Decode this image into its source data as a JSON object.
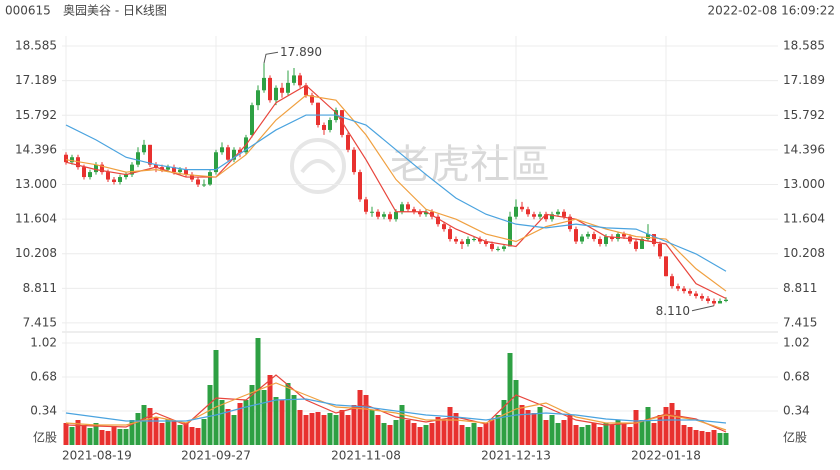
{
  "header": {
    "code": "000615",
    "name": "奥园美谷 - 日K线图",
    "datetime": "2022-02-08 16:09:22"
  },
  "watermark": "老虎社區",
  "chart_data": {
    "type": "candlestick",
    "categories": [
      "2021-08-19",
      null,
      null,
      null,
      null,
      null,
      null,
      null,
      null,
      null,
      null,
      null,
      null,
      null,
      null,
      null,
      null,
      null,
      null,
      null,
      null,
      null,
      null,
      null,
      null,
      "2021-09-27",
      null,
      null,
      null,
      null,
      null,
      null,
      null,
      null,
      null,
      null,
      null,
      null,
      null,
      null,
      null,
      null,
      null,
      null,
      null,
      null,
      null,
      null,
      null,
      null,
      "2021-11-08",
      null,
      null,
      null,
      null,
      null,
      null,
      null,
      null,
      null,
      null,
      null,
      null,
      null,
      null,
      null,
      null,
      null,
      null,
      null,
      null,
      null,
      null,
      null,
      null,
      "2021-12-13",
      null,
      null,
      null,
      null,
      null,
      null,
      null,
      null,
      null,
      null,
      null,
      null,
      null,
      null,
      null,
      null,
      null,
      null,
      null,
      null,
      null,
      null,
      null,
      null,
      "2022-01-18",
      null,
      null,
      null,
      null,
      null,
      null,
      null,
      null,
      null,
      null
    ],
    "ohlc": [
      [
        14.2,
        14.3,
        13.8,
        13.9
      ],
      [
        13.9,
        14.2,
        13.8,
        14.1
      ],
      [
        14.1,
        14.2,
        13.6,
        13.7
      ],
      [
        13.7,
        13.8,
        13.2,
        13.3
      ],
      [
        13.3,
        13.6,
        13.2,
        13.5
      ],
      [
        13.5,
        13.9,
        13.4,
        13.8
      ],
      [
        13.8,
        13.9,
        13.4,
        13.5
      ],
      [
        13.5,
        13.6,
        13.1,
        13.2
      ],
      [
        13.2,
        13.3,
        13.0,
        13.1
      ],
      [
        13.1,
        13.4,
        13.0,
        13.3
      ],
      [
        13.3,
        13.5,
        13.2,
        13.4
      ],
      [
        13.4,
        13.9,
        13.3,
        13.8
      ],
      [
        13.8,
        14.5,
        13.7,
        14.3
      ],
      [
        14.3,
        14.8,
        14.2,
        14.6
      ],
      [
        14.6,
        14.6,
        13.7,
        13.8
      ],
      [
        13.8,
        13.9,
        13.5,
        13.7
      ],
      [
        13.7,
        13.8,
        13.5,
        13.6
      ],
      [
        13.6,
        13.8,
        13.5,
        13.7
      ],
      [
        13.7,
        13.8,
        13.4,
        13.5
      ],
      [
        13.5,
        13.7,
        13.4,
        13.6
      ],
      [
        13.6,
        13.7,
        13.3,
        13.4
      ],
      [
        13.4,
        13.5,
        13.1,
        13.2
      ],
      [
        13.2,
        13.3,
        12.9,
        13.0
      ],
      [
        13.0,
        13.2,
        12.9,
        13.0
      ],
      [
        13.0,
        13.6,
        12.95,
        13.5
      ],
      [
        13.5,
        14.4,
        13.4,
        14.3
      ],
      [
        14.3,
        14.7,
        14.2,
        14.5
      ],
      [
        14.5,
        14.6,
        13.9,
        14.0
      ],
      [
        14.0,
        14.5,
        13.9,
        14.4
      ],
      [
        14.4,
        14.5,
        14.1,
        14.3
      ],
      [
        14.3,
        15.0,
        14.2,
        14.9
      ],
      [
        15.0,
        16.3,
        14.9,
        16.2
      ],
      [
        16.2,
        17.0,
        16.0,
        16.8
      ],
      [
        16.8,
        17.89,
        16.7,
        17.3
      ],
      [
        17.3,
        17.4,
        16.3,
        16.4
      ],
      [
        16.4,
        17.0,
        16.2,
        16.9
      ],
      [
        16.9,
        17.1,
        16.5,
        16.7
      ],
      [
        16.7,
        17.6,
        16.6,
        17.1
      ],
      [
        17.1,
        17.7,
        17.0,
        17.4
      ],
      [
        17.4,
        17.5,
        16.9,
        17.0
      ],
      [
        17.0,
        17.1,
        16.5,
        16.6
      ],
      [
        16.6,
        16.7,
        16.2,
        16.3
      ],
      [
        16.3,
        16.3,
        15.3,
        15.4
      ],
      [
        15.4,
        15.5,
        15.0,
        15.2
      ],
      [
        15.2,
        15.7,
        15.1,
        15.6
      ],
      [
        15.6,
        16.1,
        15.5,
        16.0
      ],
      [
        16.0,
        16.0,
        14.9,
        15.0
      ],
      [
        15.0,
        15.1,
        14.3,
        14.4
      ],
      [
        14.4,
        14.5,
        13.4,
        13.5
      ],
      [
        13.5,
        13.6,
        12.3,
        12.4
      ],
      [
        12.4,
        12.5,
        11.8,
        11.9
      ],
      [
        11.9,
        12.1,
        11.7,
        11.9
      ],
      [
        11.9,
        12.0,
        11.6,
        11.7
      ],
      [
        11.7,
        11.9,
        11.6,
        11.8
      ],
      [
        11.8,
        11.9,
        11.5,
        11.6
      ],
      [
        11.6,
        12.0,
        11.5,
        11.9
      ],
      [
        11.9,
        12.3,
        11.8,
        12.2
      ],
      [
        12.2,
        12.3,
        11.9,
        12.0
      ],
      [
        12.0,
        12.1,
        11.8,
        11.9
      ],
      [
        11.9,
        12.0,
        11.7,
        11.8
      ],
      [
        11.8,
        12.0,
        11.7,
        11.9
      ],
      [
        11.9,
        12.0,
        11.6,
        11.7
      ],
      [
        11.7,
        11.8,
        11.3,
        11.4
      ],
      [
        11.4,
        11.5,
        11.1,
        11.2
      ],
      [
        11.2,
        11.3,
        10.7,
        10.8
      ],
      [
        10.8,
        10.9,
        10.6,
        10.7
      ],
      [
        10.7,
        10.8,
        10.4,
        10.6
      ],
      [
        10.6,
        10.9,
        10.5,
        10.8
      ],
      [
        10.8,
        10.9,
        10.7,
        10.8
      ],
      [
        10.8,
        10.9,
        10.6,
        10.7
      ],
      [
        10.7,
        10.8,
        10.5,
        10.6
      ],
      [
        10.6,
        10.7,
        10.3,
        10.4
      ],
      [
        10.4,
        10.5,
        10.3,
        10.4
      ],
      [
        10.4,
        10.6,
        10.3,
        10.5
      ],
      [
        10.5,
        11.9,
        10.5,
        11.7
      ],
      [
        11.7,
        12.4,
        11.6,
        12.1
      ],
      [
        12.1,
        12.3,
        11.9,
        12.0
      ],
      [
        12.0,
        12.1,
        11.7,
        11.8
      ],
      [
        11.8,
        11.9,
        11.6,
        11.7
      ],
      [
        11.7,
        11.9,
        11.6,
        11.8
      ],
      [
        11.8,
        11.9,
        11.5,
        11.6
      ],
      [
        11.6,
        11.9,
        11.5,
        11.8
      ],
      [
        11.8,
        12.0,
        11.7,
        11.9
      ],
      [
        11.9,
        12.0,
        11.6,
        11.7
      ],
      [
        11.7,
        11.8,
        11.1,
        11.2
      ],
      [
        11.2,
        11.3,
        10.6,
        10.7
      ],
      [
        10.7,
        11.0,
        10.6,
        10.9
      ],
      [
        10.9,
        11.1,
        10.8,
        11.0
      ],
      [
        11.0,
        11.1,
        10.7,
        10.8
      ],
      [
        10.8,
        10.9,
        10.5,
        10.6
      ],
      [
        10.6,
        11.0,
        10.5,
        10.9
      ],
      [
        10.9,
        11.0,
        10.7,
        10.8
      ],
      [
        10.8,
        11.1,
        10.7,
        11.0
      ],
      [
        11.0,
        11.1,
        10.8,
        10.9
      ],
      [
        10.9,
        11.0,
        10.6,
        10.7
      ],
      [
        10.7,
        10.8,
        10.3,
        10.4
      ],
      [
        10.4,
        10.9,
        10.4,
        10.8
      ],
      [
        10.8,
        11.4,
        10.7,
        11.0
      ],
      [
        11.0,
        11.0,
        10.5,
        10.6
      ],
      [
        10.6,
        10.7,
        10.0,
        10.1
      ],
      [
        10.1,
        10.1,
        9.3,
        9.3
      ],
      [
        9.3,
        9.4,
        8.8,
        8.9
      ],
      [
        8.9,
        9.0,
        8.7,
        8.8
      ],
      [
        8.8,
        8.9,
        8.6,
        8.7
      ],
      [
        8.7,
        8.8,
        8.5,
        8.6
      ],
      [
        8.6,
        8.7,
        8.4,
        8.5
      ],
      [
        8.5,
        8.6,
        8.3,
        8.4
      ],
      [
        8.4,
        8.5,
        8.2,
        8.3
      ],
      [
        8.3,
        8.4,
        8.11,
        8.2
      ],
      [
        8.2,
        8.4,
        8.2,
        8.3
      ],
      [
        8.3,
        8.45,
        8.25,
        8.35
      ]
    ],
    "volume": [
      0.22,
      0.18,
      0.25,
      0.2,
      0.17,
      0.22,
      0.15,
      0.14,
      0.19,
      0.16,
      0.16,
      0.25,
      0.32,
      0.4,
      0.37,
      0.28,
      0.22,
      0.26,
      0.24,
      0.2,
      0.22,
      0.18,
      0.17,
      0.26,
      0.6,
      0.95,
      0.45,
      0.36,
      0.3,
      0.42,
      0.45,
      0.6,
      1.07,
      0.55,
      0.7,
      0.48,
      0.45,
      0.62,
      0.5,
      0.35,
      0.3,
      0.32,
      0.33,
      0.3,
      0.32,
      0.3,
      0.35,
      0.3,
      0.4,
      0.55,
      0.5,
      0.35,
      0.3,
      0.22,
      0.2,
      0.25,
      0.4,
      0.25,
      0.22,
      0.18,
      0.2,
      0.22,
      0.28,
      0.25,
      0.38,
      0.32,
      0.2,
      0.18,
      0.22,
      0.18,
      0.22,
      0.25,
      0.3,
      0.45,
      0.92,
      0.65,
      0.4,
      0.35,
      0.32,
      0.38,
      0.25,
      0.3,
      0.22,
      0.25,
      0.3,
      0.2,
      0.18,
      0.2,
      0.22,
      0.18,
      0.22,
      0.2,
      0.25,
      0.22,
      0.18,
      0.35,
      0.25,
      0.38,
      0.22,
      0.3,
      0.38,
      0.42,
      0.35,
      0.2,
      0.18,
      0.15,
      0.14,
      0.13,
      0.15,
      0.12,
      0.12
    ],
    "up_color": "#2ea043",
    "down_color": "#e8312f",
    "ma_x": [
      0,
      5,
      10,
      15,
      20,
      25,
      30,
      35,
      40,
      45,
      50,
      55,
      60,
      65,
      70,
      75,
      80,
      85,
      90,
      95,
      100,
      105,
      110
    ],
    "ma": [
      {
        "color": "#e8453c",
        "values": [
          13.9,
          13.6,
          13.4,
          13.7,
          13.3,
          13.3,
          14.6,
          16.3,
          17.0,
          15.9,
          14.0,
          11.9,
          11.9,
          11.2,
          10.7,
          10.5,
          11.8,
          11.6,
          10.9,
          10.8,
          10.6,
          9.0,
          8.4
        ]
      },
      {
        "color": "#f0a040",
        "values": [
          14.0,
          13.8,
          13.5,
          13.6,
          13.4,
          13.3,
          14.2,
          15.6,
          16.6,
          16.4,
          15.0,
          13.2,
          12.0,
          11.6,
          11.0,
          10.7,
          11.3,
          11.6,
          11.2,
          10.9,
          10.8,
          9.6,
          8.7
        ]
      },
      {
        "color": "#4aa3df",
        "values": [
          15.4,
          14.8,
          14.1,
          13.8,
          13.6,
          13.6,
          14.4,
          15.2,
          15.8,
          15.8,
          15.4,
          14.4,
          13.4,
          12.45,
          11.8,
          11.4,
          11.25,
          11.4,
          11.25,
          11.2,
          10.7,
          10.2,
          9.5
        ]
      }
    ],
    "volume_ma": [
      {
        "color": "#e8453c",
        "values": [
          0.2,
          0.19,
          0.18,
          0.32,
          0.2,
          0.47,
          0.45,
          0.7,
          0.45,
          0.32,
          0.4,
          0.28,
          0.23,
          0.28,
          0.21,
          0.5,
          0.38,
          0.25,
          0.2,
          0.22,
          0.31,
          0.26,
          0.13
        ]
      },
      {
        "color": "#f0a040",
        "values": [
          0.22,
          0.2,
          0.2,
          0.28,
          0.22,
          0.38,
          0.5,
          0.62,
          0.5,
          0.38,
          0.36,
          0.32,
          0.25,
          0.25,
          0.22,
          0.36,
          0.42,
          0.28,
          0.22,
          0.22,
          0.3,
          0.25,
          0.15
        ]
      },
      {
        "color": "#4aa3df",
        "values": [
          0.32,
          0.28,
          0.24,
          0.24,
          0.24,
          0.3,
          0.38,
          0.45,
          0.46,
          0.4,
          0.38,
          0.34,
          0.3,
          0.28,
          0.25,
          0.3,
          0.32,
          0.3,
          0.26,
          0.24,
          0.25,
          0.25,
          0.22
        ]
      }
    ],
    "ylim": [
      7.13,
      18.99
    ],
    "yticks": [
      18.585,
      17.189,
      15.792,
      14.396,
      {
        "value": 13,
        "label": "13.000"
      },
      11.604,
      10.208,
      8.811,
      7.415
    ],
    "volume_ylim": [
      0,
      1.1
    ],
    "volume_yticks": [
      1.02,
      0.68,
      0.34,
      {
        "value": 0,
        "label": "亿股"
      }
    ],
    "annotations": [
      {
        "x": 33,
        "value": 17.89,
        "label": "17.890"
      },
      {
        "x": 108,
        "value": 8.11,
        "label": "8.110"
      }
    ]
  }
}
